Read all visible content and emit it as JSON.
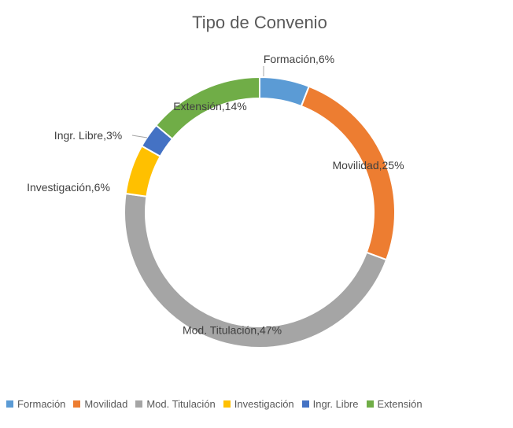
{
  "chart_data": {
    "type": "donut",
    "title": "Tipo de Convenio",
    "categories": [
      "Formación",
      "Movilidad",
      "Mod. Titulación",
      "Investigación",
      "Ingr. Libre",
      "Extensión"
    ],
    "values": [
      6,
      25,
      47,
      6,
      3,
      14
    ],
    "value_labels": [
      "Formación,6%",
      "Movilidad,25%",
      "Mod. Titulación,47%",
      "Investigación,6%",
      "Ingr. Libre,3%",
      "Extensión,14%"
    ],
    "colors": [
      "#5b9bd5",
      "#ed7d31",
      "#a5a5a5",
      "#ffc000",
      "#4472c4",
      "#70ad47"
    ],
    "legend": "bottom"
  }
}
